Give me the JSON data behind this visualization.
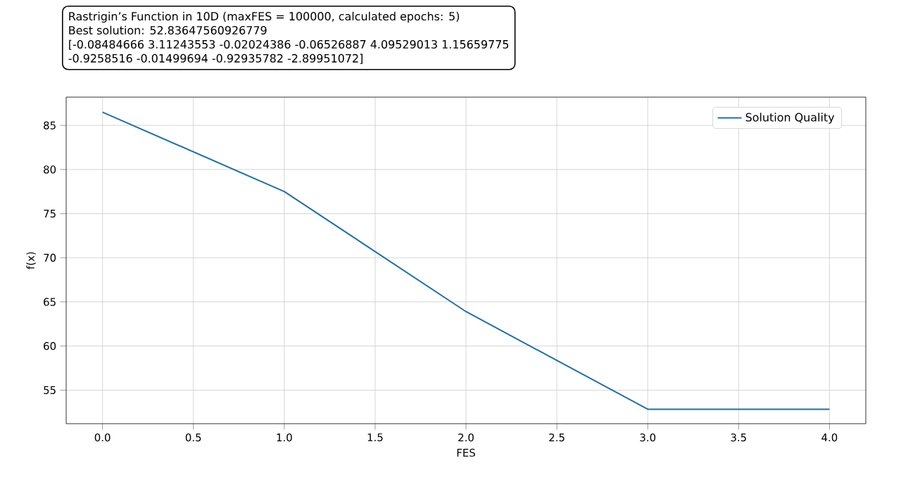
{
  "chart_data": {
    "type": "line",
    "xlabel": "FES",
    "ylabel": "f(x)",
    "annotations": [
      "Rastrigin’s Function in 10D (maxFES = 100000, calculated epochs: 5)",
      "Best solution: 52.83647560926779",
      "[-0.08484666  3.11243553 -0.02024386 -0.06526887  4.09529013  1.15659775",
      "-0.9258516  -0.01499694 -0.92935782 -2.89951072]"
    ],
    "x": [
      0,
      1,
      2,
      3,
      4
    ],
    "series": [
      {
        "name": "Solution Quality",
        "color": "#1f6fa8",
        "values": [
          86.5,
          77.5,
          63.9,
          52.84,
          52.84
        ]
      }
    ],
    "xlim": [
      -0.2,
      4.2
    ],
    "ylim": [
      51.2,
      88.2
    ],
    "xticks": [
      {
        "value": 0,
        "label": "0.0"
      },
      0.5,
      {
        "value": 1,
        "label": "1.0"
      },
      1.5,
      {
        "value": 2,
        "label": "2.0"
      },
      2.5,
      {
        "value": 3,
        "label": "3.0"
      },
      3.5,
      {
        "value": 4,
        "label": "4.0"
      }
    ],
    "yticks": [
      55,
      60,
      65,
      70,
      75,
      80,
      85
    ],
    "grid": true,
    "legend": "top right",
    "marker": "none",
    "line_style": "solid"
  }
}
